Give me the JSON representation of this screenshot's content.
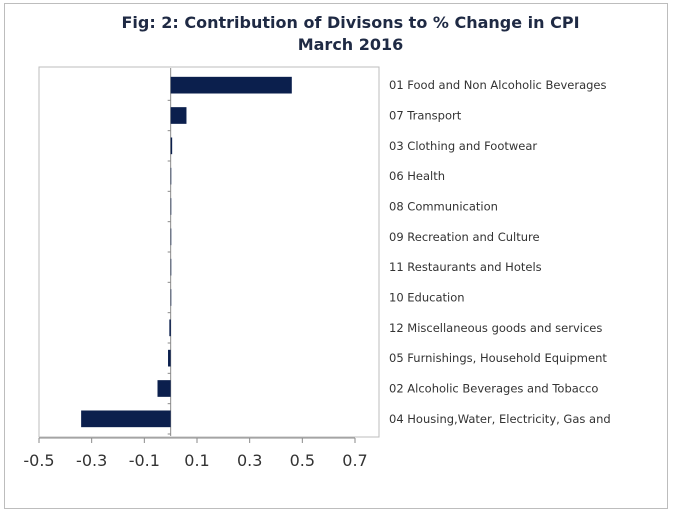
{
  "chart_data": {
    "type": "bar",
    "orientation": "horizontal",
    "title": "Fig: 2: Contribution of Divisons to % Change in CPI",
    "subtitle": "March 2016",
    "categories": [
      "01 Food and Non Alcoholic Beverages",
      "07 Transport",
      "03 Clothing and Footwear",
      "06 Health",
      "08 Communication",
      "09 Recreation and Culture",
      "11 Restaurants and Hotels",
      "10 Education",
      "12 Miscellaneous goods and services",
      "05 Furnishings, Household Equipment",
      "02 Alcoholic Beverages and Tobacco",
      "04 Housing,Water, Electricity, Gas and"
    ],
    "values": [
      0.46,
      0.06,
      0.005,
      0.0,
      0.0,
      0.0,
      0.0,
      0.0,
      -0.005,
      -0.01,
      -0.05,
      -0.34
    ],
    "xlim": [
      -0.5,
      0.7
    ],
    "xticks": [
      "-0.5",
      "-0.3",
      "-0.1",
      "0.1",
      "0.3",
      "0.5",
      "0.7"
    ],
    "grid": false,
    "bar_color": "#0b1f4d"
  }
}
